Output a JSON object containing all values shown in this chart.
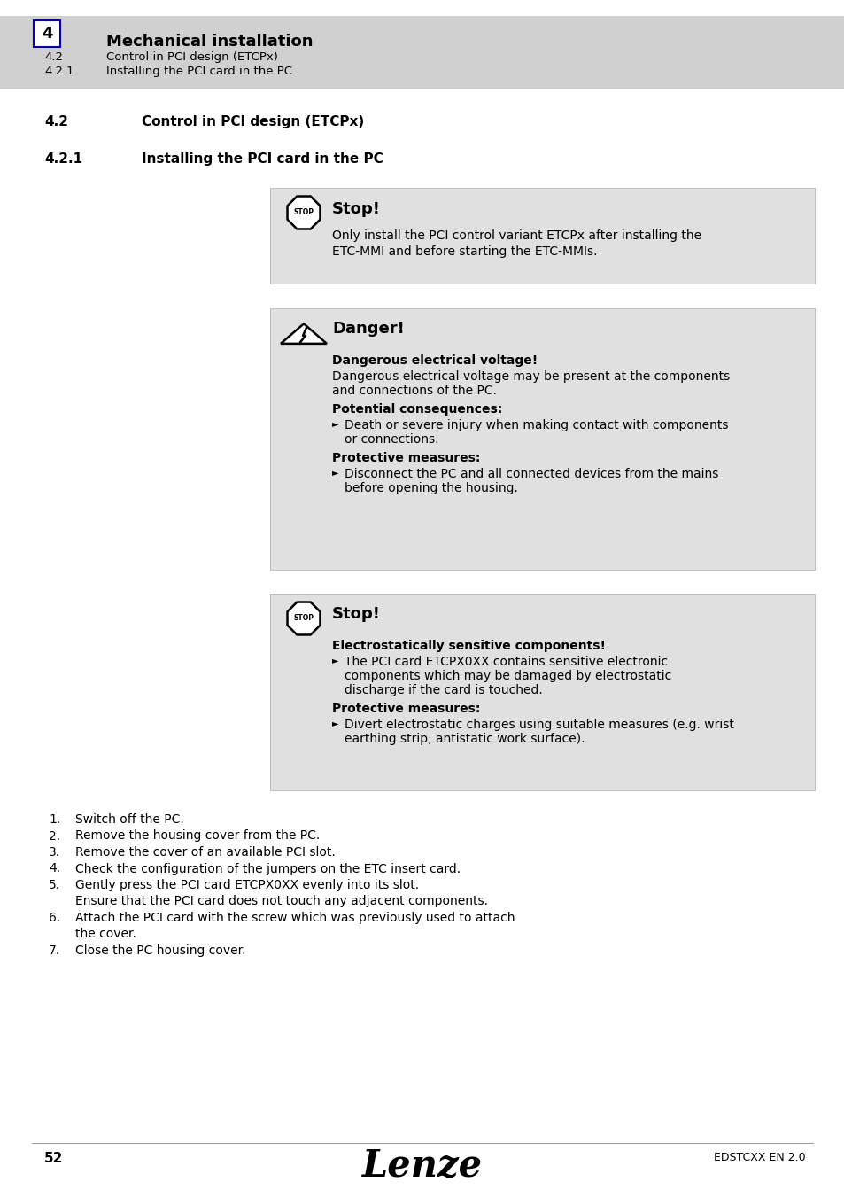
{
  "page_bg": "#ffffff",
  "box_bg": "#e0e0e0",
  "header_bg": "#d0d0d0",
  "header": {
    "chapter_num": "4",
    "chapter_title": "Mechanical installation",
    "sub1_num": "4.2",
    "sub1_title": "Control in PCI design (ETCPx)",
    "sub2_num": "4.2.1",
    "sub2_title": "Installing the PCI card in the PC"
  },
  "section_42_num": "4.2",
  "section_42_title": "Control in PCI design (ETCPx)",
  "section_421_num": "4.2.1",
  "section_421_title": "Installing the PCI card in the PC",
  "stop_box1_title": "Stop!",
  "stop_box1_text_line1": "Only install the PCI control variant ETCPx after installing the",
  "stop_box1_text_line2": "ETC-MMI and before starting the ETC-MMIs.",
  "danger_title": "Danger!",
  "danger_sub": "Dangerous electrical voltage!",
  "danger_text1_line1": "Dangerous electrical voltage may be present at the components",
  "danger_text1_line2": "and connections of the PC.",
  "danger_bold1": "Potential consequences:",
  "danger_bullet1_line1": "Death or severe injury when making contact with components",
  "danger_bullet1_line2": "or connections.",
  "danger_bold2": "Protective measures:",
  "danger_bullet2_line1": "Disconnect the PC and all connected devices from the mains",
  "danger_bullet2_line2": "before opening the housing.",
  "stop_box2_title": "Stop!",
  "stop_box2_sub": "Electrostatically sensitive components!",
  "stop_box2_bullet1_line1": "The PCI card ETCPX0XX contains sensitive electronic",
  "stop_box2_bullet1_line2": "components which may be damaged by electrostatic",
  "stop_box2_bullet1_line3": "discharge if the card is touched.",
  "stop_box2_bold2": "Protective measures:",
  "stop_box2_bullet2_line1": "Divert electrostatic charges using suitable measures (e.g. wrist",
  "stop_box2_bullet2_line2": "earthing strip, antistatic work surface).",
  "steps": [
    [
      "1.",
      "Switch off the PC."
    ],
    [
      "2.",
      "Remove the housing cover from the PC."
    ],
    [
      "3.",
      "Remove the cover of an available PCI slot."
    ],
    [
      "4.",
      "Check the configuration of the jumpers on the ETC insert card."
    ],
    [
      "5.",
      "Gently press the PCI card ETCPX0XX evenly into its slot."
    ],
    [
      "",
      "Ensure that the PCI card does not touch any adjacent components."
    ],
    [
      "6.",
      "Attach the PCI card with the screw which was previously used to attach"
    ],
    [
      "",
      "the cover."
    ],
    [
      "7.",
      "Close the PC housing cover."
    ]
  ],
  "footer_page": "52",
  "footer_logo": "Lenze",
  "footer_doc": "EDSTCXX EN 2.0"
}
